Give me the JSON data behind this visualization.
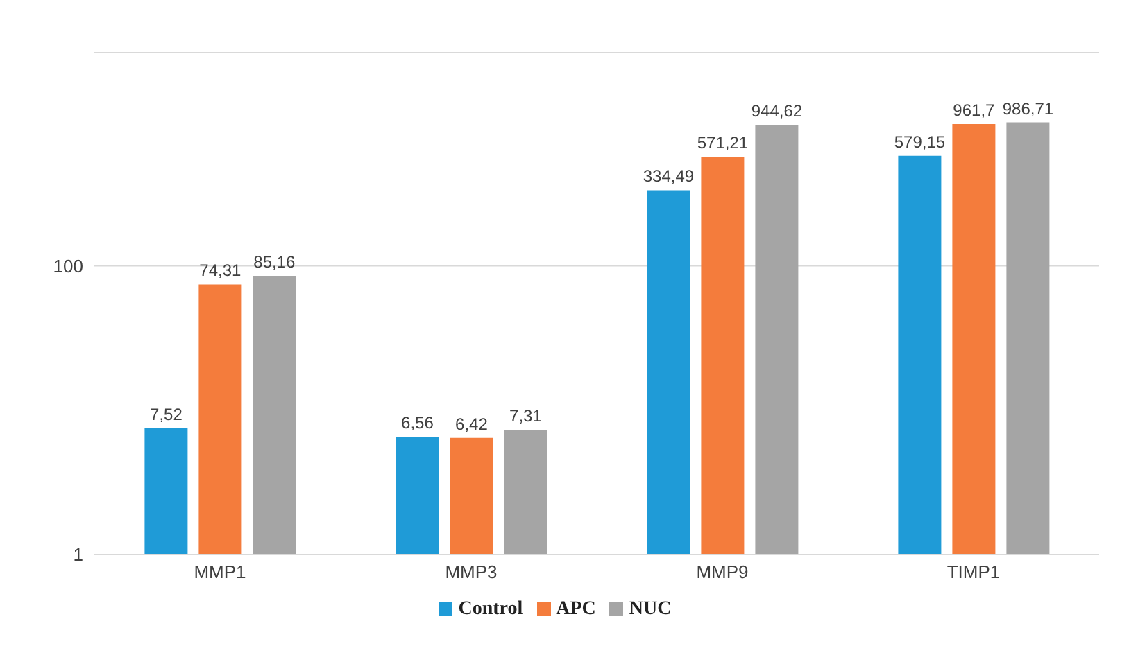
{
  "chart_data": {
    "type": "bar",
    "categories": [
      "MMP1",
      "MMP3",
      "MMP9",
      "TIMP1"
    ],
    "series": [
      {
        "name": "Control",
        "color": "#1f9bd7",
        "values": [
          7.52,
          6.56,
          334.49,
          579.15
        ],
        "value_labels": [
          "7,52",
          "6,56",
          "334,49",
          "579,15"
        ]
      },
      {
        "name": "APC",
        "color": "#f47c3c",
        "values": [
          74.31,
          6.42,
          571.21,
          961.7
        ],
        "value_labels": [
          "74,31",
          "6,42",
          "571,21",
          "961,7"
        ]
      },
      {
        "name": "NUC",
        "color": "#a5a5a5",
        "values": [
          85.16,
          7.31,
          944.62,
          986.71
        ],
        "value_labels": [
          "85,16",
          "7,31",
          "944,62",
          "986,71"
        ]
      }
    ],
    "log": true,
    "ylim": [
      1,
      3000
    ],
    "yticks": [
      1,
      100
    ],
    "grid": "y",
    "legend": "bottom"
  }
}
